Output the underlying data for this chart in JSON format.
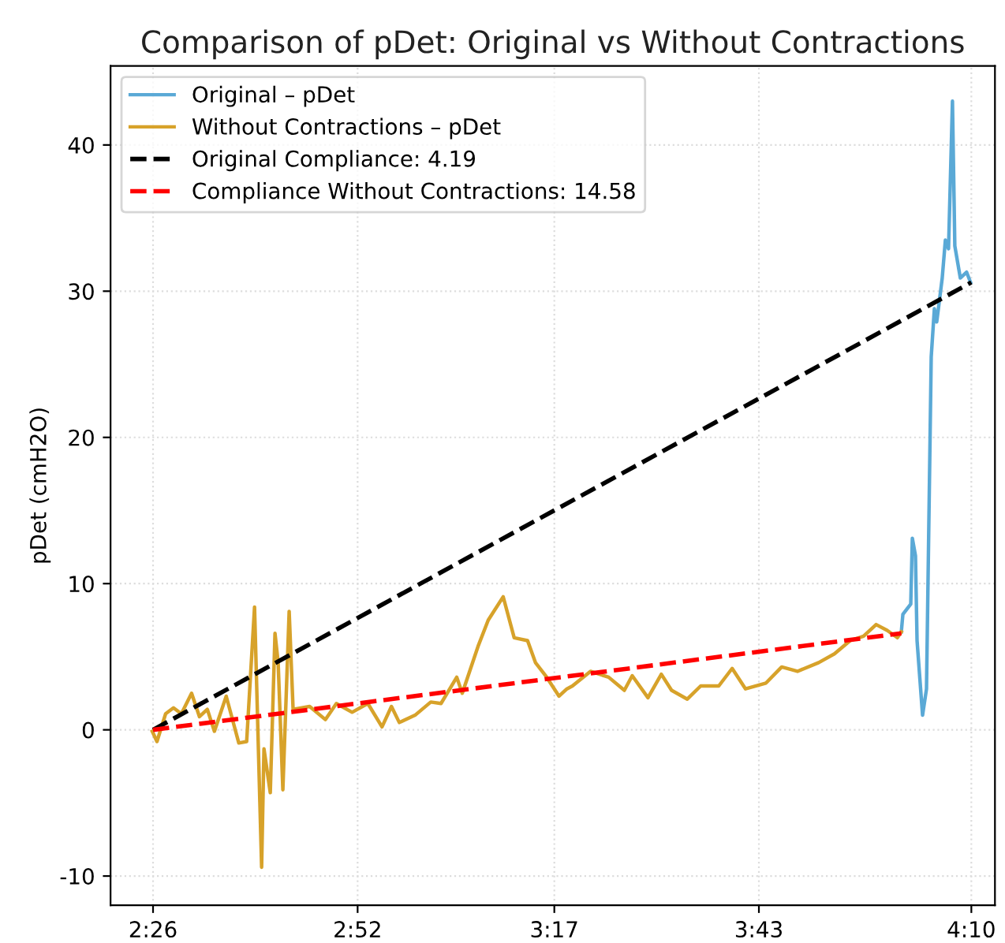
{
  "chart_data": {
    "type": "line",
    "title": "Comparison of pDet: Original vs Without Contractions",
    "ylabel": "pDet (cmH2O)",
    "xlim": [
      140.6,
      253
    ],
    "xticks": [
      {
        "value": 146,
        "label": "2:26"
      },
      {
        "value": 172,
        "label": "2:52"
      },
      {
        "value": 197,
        "label": "3:17"
      },
      {
        "value": 223,
        "label": "3:43"
      },
      {
        "value": 250,
        "label": "4:10"
      }
    ],
    "ylim": [
      -12,
      45.4
    ],
    "yticks": [
      -10,
      0,
      10,
      20,
      30,
      40
    ],
    "grid": true,
    "legend": "top left",
    "marker": "none",
    "series": [
      {
        "name": "Original – pDet",
        "color": "#5aa9d6",
        "line_style": "solid",
        "x": [
          241.1,
          241.3,
          242.3,
          242.5,
          242.9,
          243.1,
          243.8,
          244.3,
          244.9,
          245.3,
          245.6,
          246.3,
          246.7,
          247.1,
          247.6,
          247.9,
          248.6,
          249.4,
          249.9
        ],
        "values": [
          6.7,
          7.9,
          8.6,
          13.1,
          11.9,
          6.1,
          1.0,
          2.8,
          25.5,
          28.8,
          27.9,
          30.9,
          33.5,
          32.9,
          43.0,
          33.1,
          30.9,
          31.3,
          30.6
        ]
      },
      {
        "name": "Without Contractions – pDet",
        "color": "#d7a22a",
        "line_style": "solid",
        "x": [
          145.9,
          146.5,
          147.6,
          148.6,
          149.6,
          150.9,
          151.9,
          152.9,
          153.8,
          155.3,
          156.9,
          157.9,
          158.9,
          159.8,
          160.1,
          160.9,
          161.5,
          161.9,
          162.5,
          163.3,
          163.8,
          165.9,
          167.9,
          169.3,
          171.3,
          173.3,
          175.1,
          176.3,
          177.3,
          179.3,
          181.3,
          182.6,
          184.6,
          185.3,
          187.3,
          188.6,
          190.5,
          191.9,
          193.6,
          194.6,
          195.9,
          197.6,
          198.6,
          199.3,
          201.6,
          203.9,
          205.9,
          206.9,
          208.9,
          210.6,
          211.9,
          213.9,
          215.6,
          217.9,
          219.6,
          221.3,
          223.9,
          225.9,
          227.9,
          230.6,
          232.6,
          234.6,
          236.3,
          237.9,
          239.3,
          240.6,
          241.1
        ],
        "values": [
          -0.1,
          -0.8,
          1.1,
          1.5,
          1.1,
          2.5,
          0.9,
          1.4,
          -0.1,
          2.3,
          -0.9,
          -0.8,
          8.4,
          -9.4,
          -1.3,
          -4.3,
          6.6,
          4.6,
          -4.1,
          8.1,
          1.4,
          1.6,
          0.7,
          1.8,
          1.2,
          1.8,
          0.2,
          1.6,
          0.5,
          1.0,
          1.9,
          1.8,
          3.6,
          2.5,
          5.7,
          7.5,
          9.1,
          6.3,
          6.1,
          4.6,
          3.7,
          2.3,
          2.8,
          3.0,
          4.0,
          3.6,
          2.7,
          3.7,
          2.2,
          3.8,
          2.7,
          2.1,
          3.0,
          3.0,
          4.2,
          2.8,
          3.2,
          4.3,
          4.0,
          4.6,
          5.2,
          6.1,
          6.4,
          7.2,
          6.8,
          6.3,
          6.7
        ]
      },
      {
        "name": "Original Compliance: 4.19",
        "color": "#000000",
        "line_style": "dashed",
        "x": [
          146,
          250
        ],
        "values": [
          0,
          30.6
        ]
      },
      {
        "name": "Compliance Without Contractions: 14.58",
        "color": "#ff0000",
        "line_style": "dashed",
        "x": [
          146,
          241.1
        ],
        "values": [
          0,
          6.6
        ]
      }
    ]
  }
}
